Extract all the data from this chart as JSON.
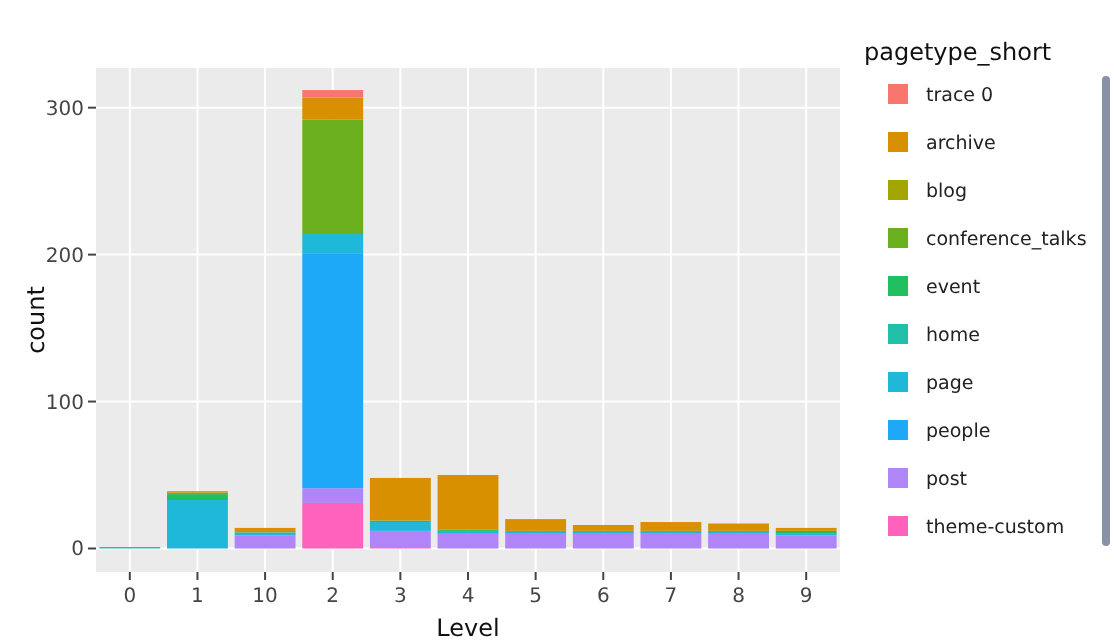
{
  "chart_data": {
    "type": "bar",
    "stacked": true,
    "xlabel": "Level",
    "ylabel": "count",
    "legend_title": "pagetype_short",
    "legend": "right",
    "grid": true,
    "categories": [
      "0",
      "1",
      "10",
      "2",
      "3",
      "4",
      "5",
      "6",
      "7",
      "8",
      "9"
    ],
    "ylim": [
      -16,
      327
    ],
    "yticks": [
      0,
      100,
      200,
      300
    ],
    "series": [
      {
        "name": "theme-custom",
        "color": "#ff62bc",
        "values": [
          0,
          0,
          0,
          31,
          1,
          0,
          0,
          0,
          0,
          0,
          0
        ]
      },
      {
        "name": "post",
        "color": "#b085f8",
        "values": [
          0,
          0,
          9,
          10,
          11,
          10,
          10,
          10,
          10,
          10,
          9
        ]
      },
      {
        "name": "people",
        "color": "#1ea8f8",
        "values": [
          0,
          0,
          0,
          160,
          0,
          0,
          0,
          0,
          0,
          0,
          0
        ]
      },
      {
        "name": "page",
        "color": "#1fb8d8",
        "values": [
          0,
          33,
          2,
          13,
          6,
          2,
          2,
          2,
          2,
          2,
          1
        ]
      },
      {
        "name": "home",
        "color": "#1fbfa8",
        "values": [
          1,
          0,
          0,
          0,
          0,
          0,
          0,
          0,
          0,
          0,
          0
        ]
      },
      {
        "name": "event",
        "color": "#1fbf5f",
        "values": [
          0,
          4,
          0,
          0,
          1,
          1,
          0,
          0,
          0,
          0,
          2
        ]
      },
      {
        "name": "conference_talks",
        "color": "#6bb11f",
        "values": [
          0,
          1,
          0,
          78,
          0,
          0,
          0,
          0,
          0,
          0,
          0
        ]
      },
      {
        "name": "blog",
        "color": "#a3a500",
        "values": [
          0,
          0,
          0,
          0,
          0,
          0,
          0,
          0,
          0,
          0,
          0
        ]
      },
      {
        "name": "archive",
        "color": "#d89000",
        "values": [
          0,
          1,
          3,
          15,
          29,
          37,
          8,
          4,
          6,
          5,
          2
        ]
      },
      {
        "name": "trace 0",
        "color": "#f8766d",
        "values": [
          0,
          0,
          0,
          5,
          0,
          0,
          0,
          0,
          0,
          0,
          0
        ]
      }
    ]
  }
}
